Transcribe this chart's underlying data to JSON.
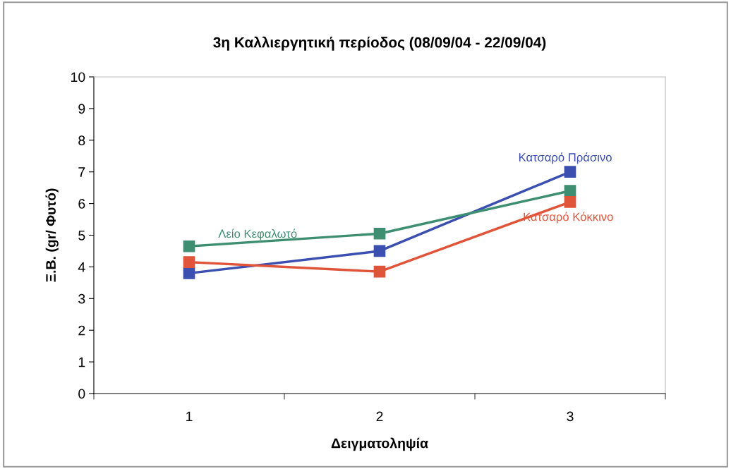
{
  "chart_data": {
    "type": "line",
    "title": "3η Καλλιεργητική περίοδος (08/09/04 - 22/09/04)",
    "xlabel": "Δειγματοληψία",
    "ylabel": "Ξ.Β. (gr/ Φυτό)",
    "categories": [
      "1",
      "2",
      "3"
    ],
    "series": [
      {
        "name": "Κατσαρό Πράσινο",
        "color": "#3a4fb0",
        "values": [
          3.8,
          4.5,
          7.0
        ]
      },
      {
        "name": "Λείο Κεφαλωτό",
        "color": "#3e8f72",
        "values": [
          4.65,
          5.05,
          6.4
        ]
      },
      {
        "name": "Κατσαρό Κόκκινο",
        "color": "#e0553a",
        "values": [
          4.15,
          3.85,
          6.05
        ]
      }
    ],
    "ylim": [
      0,
      10
    ],
    "yticks": [
      0,
      1,
      2,
      3,
      4,
      5,
      6,
      7,
      8,
      9,
      10
    ],
    "grid": false,
    "legend": false,
    "marker": "square",
    "line_style": "solid"
  }
}
